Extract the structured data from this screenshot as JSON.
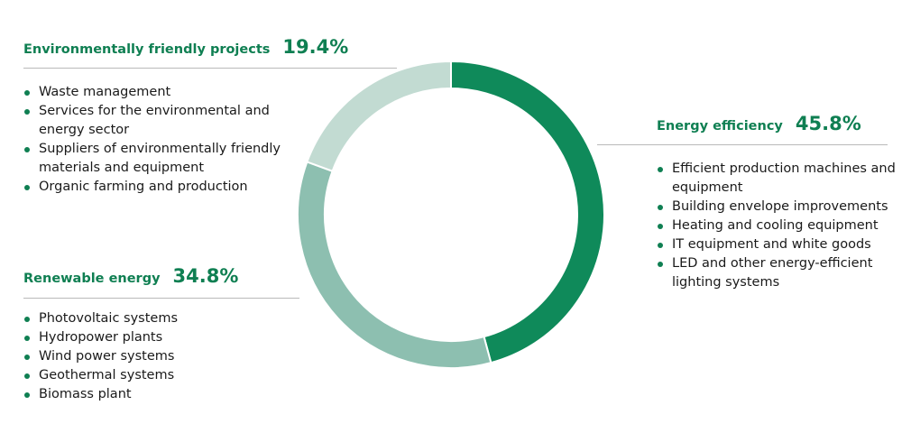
{
  "chart_data": {
    "type": "pie",
    "donut": true,
    "categories": [
      "Energy efficiency",
      "Renewable energy",
      "Environmentally friendly projects"
    ],
    "values": [
      45.8,
      34.8,
      19.4
    ],
    "value_labels": [
      "45.8%",
      "34.8%",
      "19.4%"
    ],
    "colors": [
      "#0f8a5a",
      "#8dbfb0",
      "#c2dbd2"
    ],
    "start": "top",
    "direction": "clockwise",
    "legend": "none"
  },
  "groups": {
    "environmental": {
      "title": "Environmentally friendly projects",
      "pct": "19.4%",
      "items": [
        "Waste management",
        "Services for the environmental and energy sector",
        "Suppliers of environmentally friendly materials and equipment",
        "Organic farming and production"
      ]
    },
    "renewable": {
      "title": "Renewable energy",
      "pct": "34.8%",
      "items": [
        "Photovoltaic systems",
        "Hydropower plants",
        "Wind power systems",
        "Geothermal systems",
        "Biomass plant"
      ]
    },
    "efficiency": {
      "title": "Energy efficiency",
      "pct": "45.8%",
      "items": [
        "Efficient production machines and equipment",
        "Building envelope improvements",
        "Heating and cooling equipment",
        "IT equipment and white goods",
        "LED and other energy-efficient lighting systems"
      ]
    }
  }
}
